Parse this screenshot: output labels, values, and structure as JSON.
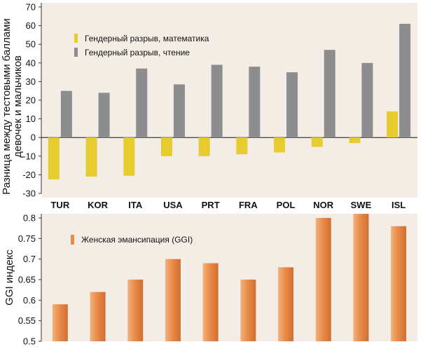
{
  "colors": {
    "panel_bg": "#f3ede6",
    "math": "#e6cc2e",
    "reading": "#8d8d8f",
    "ggi": "#e98b49",
    "zero_line": "#111111",
    "axis": "#333333"
  },
  "chart_data": [
    {
      "type": "bar",
      "categories": [
        "TUR",
        "KOR",
        "ITA",
        "USA",
        "PRT",
        "FRA",
        "POL",
        "NOR",
        "SWE",
        "ISL"
      ],
      "series": [
        {
          "name": "Гендерный разрыв, математика",
          "values": [
            -22.5,
            -21,
            -20.5,
            -10,
            -10,
            -9,
            -8,
            -5,
            -3,
            14
          ]
        },
        {
          "name": "Гендерный разрыв, чтение",
          "values": [
            25,
            24,
            37,
            28.5,
            39,
            38,
            35,
            47,
            40,
            61
          ]
        }
      ],
      "ylabel": "Разница между тестовыми баллами девочек и мальчиков",
      "ylim": [
        -30,
        70
      ],
      "yticks": [
        "-30",
        "-20",
        "-10",
        "0",
        "10",
        "20",
        "30",
        "40",
        "50",
        "60",
        "70"
      ],
      "legend_position": "top-left"
    },
    {
      "type": "bar",
      "categories": [
        "TUR",
        "KOR",
        "ITA",
        "USA",
        "PRT",
        "FRA",
        "POL",
        "NOR",
        "SWE",
        "ISL"
      ],
      "series": [
        {
          "name": "Женская эмансипация (GGI)",
          "values": [
            0.59,
            0.62,
            0.65,
            0.7,
            0.69,
            0.65,
            0.68,
            0.8,
            0.81,
            0.78
          ]
        }
      ],
      "ylabel": "GGI индекс",
      "ylim": [
        0.5,
        0.8
      ],
      "yticks": [
        "0.5",
        "0.55",
        "0.6",
        "0.65",
        "0.7",
        "0.75",
        "0.8"
      ],
      "legend_position": "top-left"
    }
  ]
}
